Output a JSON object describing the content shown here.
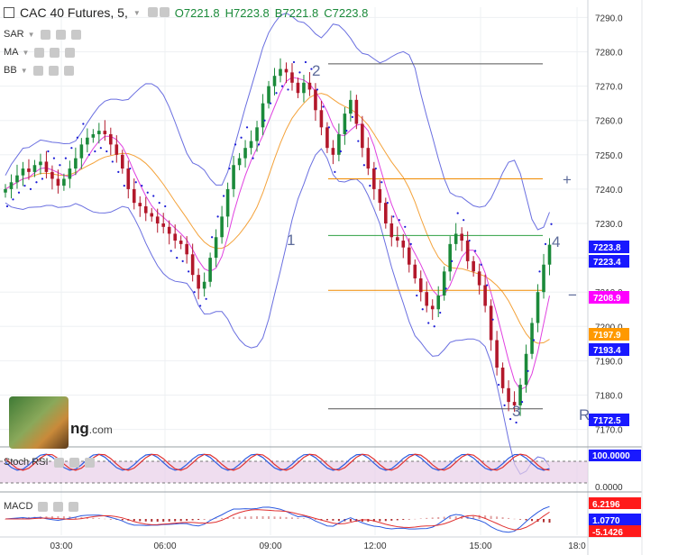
{
  "header": {
    "symbol": "CAC 40 Futures, 5,",
    "open": "O7221.8",
    "high": "H7223.8",
    "low": "B7221.8",
    "close": "C7223.8"
  },
  "indicators": [
    "SAR",
    "MA",
    "BB"
  ],
  "subpanes": {
    "stoch": "Stoch RSI",
    "macd": "MACD"
  },
  "watermark": {
    "text_big": "ng",
    "text_small": ".com"
  },
  "colors": {
    "up": "#1b8a3a",
    "down": "#b2182b",
    "bb": "#6a6fe0",
    "sar": "#1a1ad6",
    "ma_fast": "#e040e0",
    "ma_slow": "#f4a23a",
    "fib": "#f08a00",
    "green_line": "#2ea043",
    "tag_blue": "#1919ff",
    "tag_magenta": "#ff00ff",
    "tag_orange": "#ff9900",
    "tag_red": "#ff1a1a"
  },
  "chart_data": {
    "type": "candlestick",
    "price_axis": {
      "min": 7167,
      "max": 7293,
      "ticks": [
        "7290.0",
        "7280.0",
        "7270.0",
        "7260.0",
        "7250.0",
        "7240.0",
        "7230.0",
        "7220.0",
        "7210.0",
        "7200.0",
        "7190.0",
        "7180.0",
        "7170.0"
      ]
    },
    "time_axis": {
      "labels": [
        "03:00",
        "06:00",
        "09:00",
        "12:00",
        "15:00",
        "18:0"
      ]
    },
    "closes": [
      7240,
      7242,
      7244,
      7246,
      7245,
      7247,
      7248,
      7245,
      7243,
      7241,
      7243,
      7246,
      7249,
      7253,
      7255,
      7256,
      7257,
      7256,
      7253,
      7250,
      7246,
      7240,
      7236,
      7235,
      7233,
      7232,
      7230,
      7229,
      7227,
      7225,
      7224,
      7221,
      7215,
      7211,
      7213,
      7220,
      7226,
      7232,
      7240,
      7247,
      7249,
      7252,
      7254,
      7258,
      7265,
      7270,
      7273,
      7275,
      7274,
      7271,
      7268,
      7271,
      7269,
      7263,
      7258,
      7252,
      7250,
      7256,
      7262,
      7266,
      7259,
      7252,
      7246,
      7240,
      7236,
      7230,
      7226,
      7225,
      7223,
      7218,
      7214,
      7210,
      7206,
      7205,
      7209,
      7216,
      7224,
      7227,
      7225,
      7219,
      7216,
      7212,
      7206,
      7196,
      7188,
      7182,
      7178,
      7177,
      7183,
      7192,
      7201,
      7210,
      7218,
      7223.8
    ],
    "price_tags": [
      {
        "value": "7223.8",
        "color": "#1919ff"
      },
      {
        "value": "7223.4",
        "color": "#1919ff"
      },
      {
        "value": "7208.9",
        "color": "#ff00ff"
      },
      {
        "value": "7197.9",
        "color": "#ff9900"
      },
      {
        "value": "7193.4",
        "color": "#1919ff"
      },
      {
        "value": "7172.5",
        "color": "#1919ff"
      }
    ],
    "horizontal_levels": [
      {
        "value": 7276.5,
        "color": "#555555"
      },
      {
        "value": 7243,
        "color": "#f08a00"
      },
      {
        "value": 7226.5,
        "color": "#2ea043"
      },
      {
        "value": 7210.5,
        "color": "#f08a00"
      },
      {
        "value": 7176,
        "color": "#555555"
      }
    ],
    "wave_labels": [
      "1",
      "2",
      "3",
      "4",
      "R"
    ],
    "side_markers": [
      "+",
      "−"
    ],
    "stoch_rsi": {
      "ticks": [
        "100.0000",
        "0.0000"
      ],
      "band": [
        20,
        80
      ]
    },
    "macd": {
      "ticks": [
        "6.2196",
        "1.0770",
        "-5.1426"
      ]
    }
  }
}
